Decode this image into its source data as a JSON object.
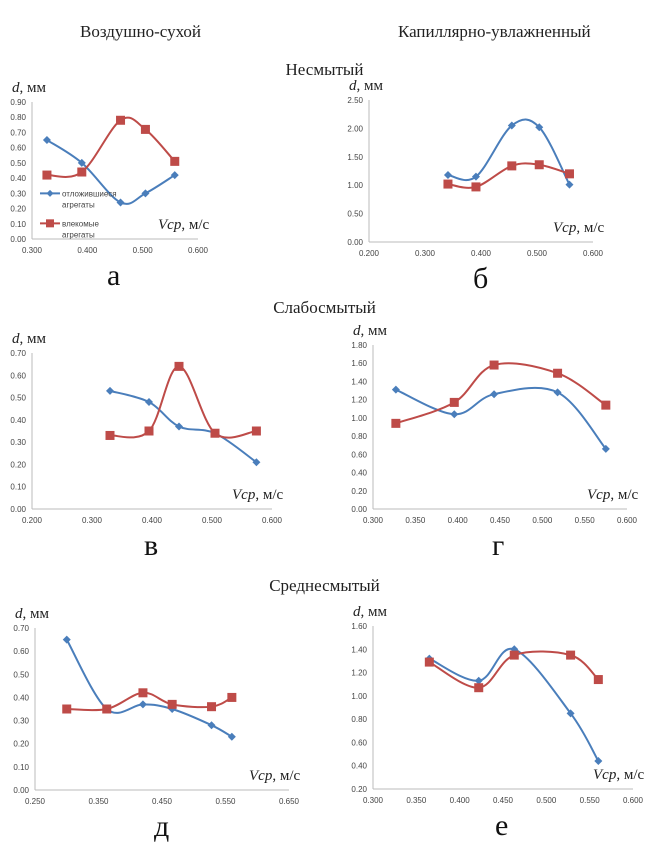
{
  "header": {
    "col_left": "Воздушно-сухой",
    "col_right": "Капиллярно-увлажненный",
    "rows": [
      "Несмытый",
      "Слабосмытый",
      "Среднесмытый"
    ]
  },
  "colors": {
    "deposited": "#4a7ebb",
    "carried": "#be4b48"
  },
  "axis_labels": {
    "y_italic": "d",
    "y_unit": ", мм",
    "x_italic": "Vср",
    "x_unit": ", м/с"
  },
  "chart_data": [
    {
      "id": "a",
      "letter": "а",
      "type": "line",
      "xlim": [
        0.3,
        0.6
      ],
      "xticks": [
        "0.300",
        "0.400",
        "0.500",
        "0.600"
      ],
      "xstep": 0.1,
      "ylim": [
        0,
        0.9
      ],
      "yticks": [
        "0.00",
        "0.10",
        "0.20",
        "0.30",
        "0.40",
        "0.50",
        "0.60",
        "0.70",
        "0.80",
        "0.90"
      ],
      "ystep": 0.1,
      "legend": {
        "placement": "lower-left",
        "entries": [
          "отложившиеся агрегаты",
          "влекомые агрегаты"
        ]
      },
      "series": [
        {
          "name": "отложившиеся агрегаты",
          "x": [
            0.327,
            0.39,
            0.46,
            0.505,
            0.558
          ],
          "y": [
            0.65,
            0.5,
            0.24,
            0.3,
            0.42
          ]
        },
        {
          "name": "влекомые агрегаты",
          "x": [
            0.327,
            0.39,
            0.46,
            0.505,
            0.558
          ],
          "y": [
            0.42,
            0.44,
            0.78,
            0.72,
            0.51
          ]
        }
      ]
    },
    {
      "id": "b",
      "letter": "б",
      "type": "line",
      "xlim": [
        0.2,
        0.6
      ],
      "xticks": [
        "0.200",
        "0.300",
        "0.400",
        "0.500",
        "0.600"
      ],
      "xstep": 0.1,
      "ylim": [
        0,
        2.5
      ],
      "yticks": [
        "0.00",
        "0.50",
        "1.00",
        "1.50",
        "2.00",
        "2.50"
      ],
      "ystep": 0.5,
      "series": [
        {
          "name": "отложившиеся агрегаты",
          "x": [
            0.341,
            0.391,
            0.455,
            0.504,
            0.558
          ],
          "y": [
            1.18,
            1.15,
            2.05,
            2.02,
            1.01
          ]
        },
        {
          "name": "влекомые агрегаты",
          "x": [
            0.341,
            0.391,
            0.455,
            0.504,
            0.558
          ],
          "y": [
            1.02,
            0.97,
            1.34,
            1.36,
            1.2
          ]
        }
      ]
    },
    {
      "id": "v",
      "letter": "в",
      "type": "line",
      "xlim": [
        0.2,
        0.6
      ],
      "xticks": [
        "0.200",
        "0.300",
        "0.400",
        "0.500",
        "0.600"
      ],
      "xstep": 0.1,
      "ylim": [
        0,
        0.7
      ],
      "yticks": [
        "0.00",
        "0.10",
        "0.20",
        "0.30",
        "0.40",
        "0.50",
        "0.60",
        "0.70"
      ],
      "ystep": 0.1,
      "series": [
        {
          "name": "отложившиеся агрегаты",
          "x": [
            0.33,
            0.395,
            0.445,
            0.505,
            0.574
          ],
          "y": [
            0.53,
            0.48,
            0.37,
            0.34,
            0.21
          ]
        },
        {
          "name": "влекомые агрегаты",
          "x": [
            0.33,
            0.395,
            0.445,
            0.505,
            0.574
          ],
          "y": [
            0.33,
            0.35,
            0.64,
            0.34,
            0.35
          ]
        }
      ]
    },
    {
      "id": "g",
      "letter": "г",
      "type": "line",
      "xlim": [
        0.3,
        0.6
      ],
      "xticks": [
        "0.300",
        "0.350",
        "0.400",
        "0.450",
        "0.500",
        "0.550",
        "0.600"
      ],
      "xstep": 0.05,
      "ylim": [
        0,
        1.8
      ],
      "yticks": [
        "0.00",
        "0.20",
        "0.40",
        "0.60",
        "0.80",
        "1.00",
        "1.20",
        "1.40",
        "1.60",
        "1.80"
      ],
      "ystep": 0.2,
      "series": [
        {
          "name": "отложившиеся агрегаты",
          "x": [
            0.327,
            0.396,
            0.443,
            0.518,
            0.575
          ],
          "y": [
            1.31,
            1.04,
            1.26,
            1.28,
            0.66
          ]
        },
        {
          "name": "влекомые агрегаты",
          "x": [
            0.327,
            0.396,
            0.443,
            0.518,
            0.575
          ],
          "y": [
            0.94,
            1.17,
            1.58,
            1.49,
            1.14
          ]
        }
      ]
    },
    {
      "id": "d",
      "letter": "д",
      "type": "line",
      "xlim": [
        0.25,
        0.65
      ],
      "xticks": [
        "0.250",
        "0.350",
        "0.450",
        "0.550",
        "0.650"
      ],
      "xstep": 0.1,
      "ylim": [
        0,
        0.7
      ],
      "yticks": [
        "0.00",
        "0.10",
        "0.20",
        "0.30",
        "0.40",
        "0.50",
        "0.60",
        "0.70"
      ],
      "ystep": 0.1,
      "series": [
        {
          "name": "отложившиеся агрегаты",
          "x": [
            0.3,
            0.363,
            0.42,
            0.466,
            0.528,
            0.56
          ],
          "y": [
            0.65,
            0.35,
            0.37,
            0.35,
            0.28,
            0.23
          ]
        },
        {
          "name": "влекомые агрегаты",
          "x": [
            0.3,
            0.363,
            0.42,
            0.466,
            0.528,
            0.56
          ],
          "y": [
            0.35,
            0.35,
            0.42,
            0.37,
            0.36,
            0.4
          ]
        }
      ]
    },
    {
      "id": "e",
      "letter": "е",
      "type": "line",
      "xlim": [
        0.3,
        0.6
      ],
      "xticks": [
        "0.300",
        "0.350",
        "0.400",
        "0.450",
        "0.500",
        "0.550",
        "0.600"
      ],
      "xstep": 0.05,
      "ylim": [
        0.2,
        1.6
      ],
      "yticks": [
        "0.20",
        "0.40",
        "0.60",
        "0.80",
        "1.00",
        "1.20",
        "1.40",
        "1.60"
      ],
      "ystep": 0.2,
      "series": [
        {
          "name": "отложившиеся агрегаты",
          "x": [
            0.365,
            0.422,
            0.463,
            0.528,
            0.56
          ],
          "y": [
            1.32,
            1.13,
            1.4,
            0.85,
            0.44
          ]
        },
        {
          "name": "влекомые агрегаты",
          "x": [
            0.365,
            0.422,
            0.463,
            0.528,
            0.56
          ],
          "y": [
            1.29,
            1.07,
            1.35,
            1.35,
            1.14
          ]
        }
      ]
    }
  ]
}
